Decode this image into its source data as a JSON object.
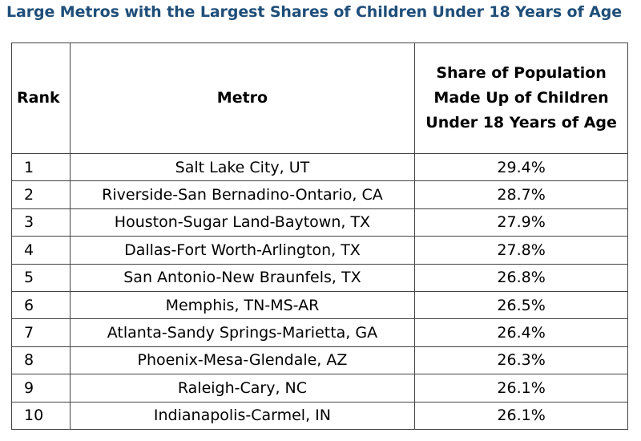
{
  "title": "Large Metros with the Largest Shares of Children Under 18 Years of Age",
  "table": {
    "headers": {
      "rank": "Rank",
      "metro": "Metro",
      "share_line1": "Share of Population",
      "share_line2": "Made Up of Children",
      "share_line3": "Under 18 Years of Age"
    },
    "rows": [
      {
        "rank": "1",
        "metro": "Salt Lake City, UT",
        "share": "29.4%"
      },
      {
        "rank": "2",
        "metro": "Riverside-San Bernadino-Ontario, CA",
        "share": "28.7%"
      },
      {
        "rank": "3",
        "metro": "Houston-Sugar Land-Baytown, TX",
        "share": "27.9%"
      },
      {
        "rank": "4",
        "metro": "Dallas-Fort Worth-Arlington, TX",
        "share": "27.8%"
      },
      {
        "rank": "5",
        "metro": "San Antonio-New Braunfels, TX",
        "share": "26.8%"
      },
      {
        "rank": "6",
        "metro": "Memphis, TN-MS-AR",
        "share": "26.5%"
      },
      {
        "rank": "7",
        "metro": "Atlanta-Sandy Springs-Marietta, GA",
        "share": "26.4%"
      },
      {
        "rank": "8",
        "metro": "Phoenix-Mesa-Glendale, AZ",
        "share": "26.3%"
      },
      {
        "rank": "9",
        "metro": "Raleigh-Cary, NC",
        "share": "26.1%"
      },
      {
        "rank": "10",
        "metro": "Indianapolis-Carmel, IN",
        "share": "26.1%"
      }
    ]
  },
  "colors": {
    "title": "#1f4e79",
    "border": "#444444"
  }
}
